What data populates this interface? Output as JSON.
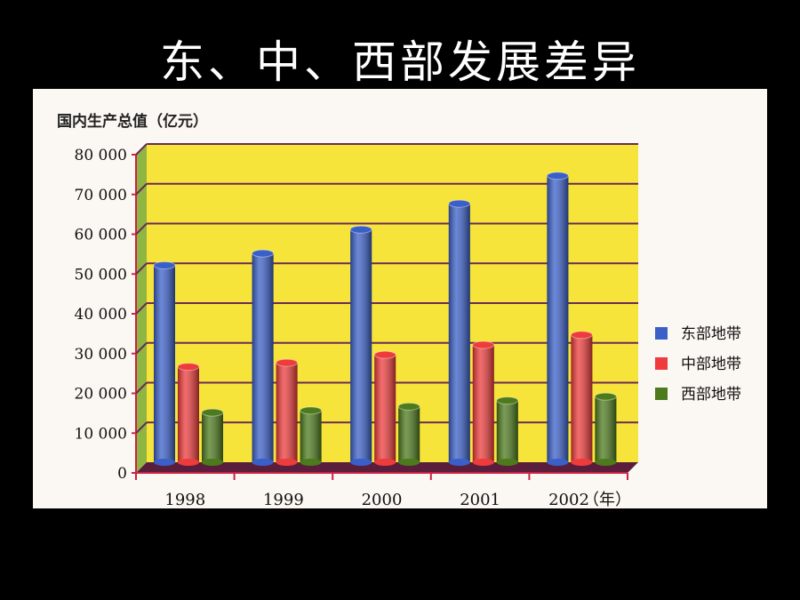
{
  "slide": {
    "title": "东、中、西部发展差异"
  },
  "chart_data": {
    "type": "bar",
    "ylabel": "国内生产总值（亿元）",
    "xunit": "（年）",
    "categories": [
      "1998",
      "1999",
      "2000",
      "2001",
      "2002"
    ],
    "ylim": [
      0,
      80000
    ],
    "yticks": [
      0,
      10000,
      20000,
      30000,
      40000,
      50000,
      60000,
      70000,
      80000
    ],
    "ytick_labels": [
      "0",
      "10 000",
      "20 000",
      "30 000",
      "40 000",
      "50 000",
      "60 000",
      "70 000",
      "80 000"
    ],
    "grid": true,
    "legend_position": "right",
    "series": [
      {
        "name": "东部地带",
        "color": "#3a5fc8",
        "values": [
          49500,
          52500,
          58500,
          65000,
          72000
        ]
      },
      {
        "name": "中部地带",
        "color": "#ee3b3b",
        "values": [
          24000,
          25000,
          27000,
          29500,
          32000
        ]
      },
      {
        "name": "西部地带",
        "color": "#4c7a1c",
        "values": [
          12500,
          13000,
          14000,
          15500,
          16500
        ]
      }
    ]
  }
}
